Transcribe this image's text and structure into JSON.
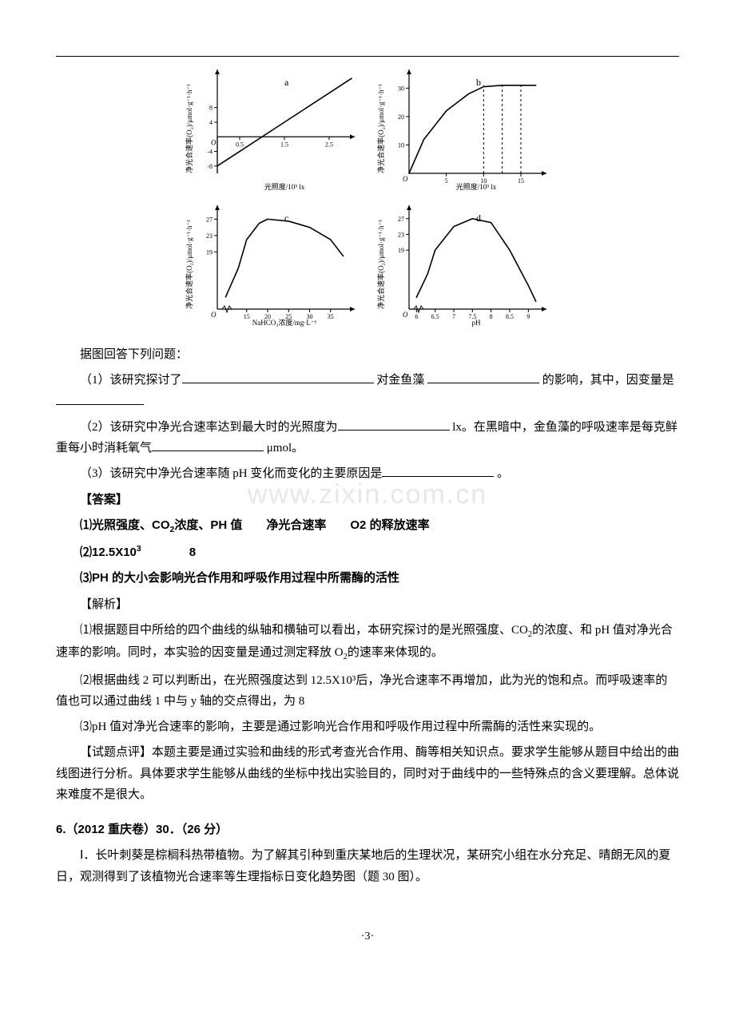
{
  "watermark": "www.zixin.com.cn",
  "charts": {
    "background_color": "#ffffff",
    "axis_color": "#000000",
    "line_color": "#000000",
    "line_width": 1.6,
    "tick_fontsize": 8,
    "label_fontsize": 9,
    "a": {
      "tag": "a",
      "type": "line",
      "ylabel": "净光合速率(O₂)/μmol·g⁻¹·h⁻¹",
      "xlabel": "光照度/10³ lx",
      "x": [
        0,
        0.5,
        1.5,
        2.5,
        3.0
      ],
      "y": [
        -8,
        -4,
        4,
        12,
        16
      ],
      "xticks": [
        0.5,
        1.5,
        2.5
      ],
      "yticks": [
        -8,
        -4,
        4,
        8
      ],
      "xlim": [
        0,
        3.0
      ],
      "ylim": [
        -10,
        18
      ]
    },
    "b": {
      "tag": "b",
      "type": "line",
      "ylabel": "净光合速率(O₂)/μmol·g⁻¹·h⁻¹",
      "xlabel": "光照度/10³ lx",
      "x": [
        0,
        2,
        5,
        8,
        10,
        12.5,
        15,
        17
      ],
      "y": [
        0,
        12,
        22,
        28,
        30.5,
        31,
        31,
        31
      ],
      "dash_x": [
        10.0,
        12.5,
        15.0
      ],
      "xticks": [
        5.0,
        10.0,
        15.0
      ],
      "yticks": [
        10,
        20,
        30
      ],
      "xlim": [
        0,
        18
      ],
      "ylim": [
        0,
        36
      ]
    },
    "c": {
      "tag": "c",
      "type": "line",
      "ylabel": "净光合速率(O₂)/μmol·g⁻¹·h⁻¹",
      "xlabel": "NaHCO₃浓度/mg·L⁻¹",
      "x": [
        10,
        13,
        15,
        18,
        20,
        25,
        30,
        35,
        38
      ],
      "y": [
        8,
        15,
        22,
        26,
        27,
        26.5,
        25,
        22,
        18
      ],
      "xticks": [
        15,
        20,
        25,
        30,
        35
      ],
      "yticks": [
        19,
        23,
        27
      ],
      "xlim": [
        8,
        40
      ],
      "ylim": [
        5,
        30
      ]
    },
    "d": {
      "tag": "d",
      "type": "line",
      "ylabel": "净光合速率(O₂)/μmol·g⁻¹·h⁻¹",
      "xlabel": "pH",
      "x": [
        6,
        6.3,
        6.5,
        7,
        7.5,
        8,
        8.5,
        9,
        9.2
      ],
      "y": [
        7,
        13,
        19,
        25,
        27,
        26,
        19,
        10,
        6
      ],
      "xticks": [
        6,
        6.5,
        7,
        7.5,
        8,
        8.5,
        9
      ],
      "yticks": [
        19,
        23,
        27
      ],
      "xlim": [
        5.8,
        9.4
      ],
      "ylim": [
        4,
        30
      ]
    }
  },
  "text": {
    "intro": "据图回答下列问题：",
    "q1_a": "（1）该研究探讨了",
    "q1_b": " 对金鱼藻 ",
    "q1_c": " 的影响，其中，因变量是",
    "q2_a": "（2）该研究中净光合速率达到最大时的光照度为",
    "q2_b": " lx。在黑暗中，金鱼藻的呼吸速率是每克鲜重每小时消耗氧气",
    "q2_c": " μmol。",
    "q3_a": "（3）该研究中净光合速率随 pH 变化而变化的主要原因是",
    "q3_b": " 。",
    "ans_head": "【答案】",
    "ans1_a": "⑴光照强度、CO",
    "ans1_b": "浓度、PH 值",
    "ans1_c": "净光合速率",
    "ans1_d": "O2 的释放速率",
    "ans2_a": "⑵12.5X10",
    "ans2_b": "8",
    "ans3": "⑶PH 的大小会影响光合作用和呼吸作用过程中所需酶的活性",
    "exp_head": "【解析】",
    "exp1_a": "⑴根据题目中所给的四个曲线的纵轴和横轴可以看出，本研究探讨的是光照强度、CO",
    "exp1_b": "的浓度、和 pH 值对净光合速率的影响。同时，本实验的因变量是通过测定释放 O",
    "exp1_c": "的速率来体现的。",
    "exp2": "⑵根据曲线 2 可以判断出，在光照强度达到 12.5X10³后，净光合速率不再增加，此为光的饱和点。而呼吸速率的值也可以通过曲线 1 中与 y 轴的交点得出，为 8",
    "exp3": "⑶pH 值对净光合速率的影响，主要是通过影响光合作用和呼吸作用过程中所需酶的活性来实现的。",
    "review": "【试题点评】本题主要是通过实验和曲线的形式考查光合作用、酶等相关知识点。要求学生能够从题目中给出的曲线图进行分析。具体要求学生能够从曲线的坐标中找出实验目的，同时对于曲线中的一些特殊点的含义要理解。总体说来难度不是很大。",
    "q6_head": "6.（2012 重庆卷）30．（26 分）",
    "q6_body": "Ⅰ．长叶刺葵是棕榈科热带植物。为了解其引种到重庆某地后的生理状况，某研究小组在水分充足、晴朗无风的夏日，观测得到了该植物光合速率等生理指标日变化趋势图（题 30 图）。",
    "page": "·3·"
  }
}
